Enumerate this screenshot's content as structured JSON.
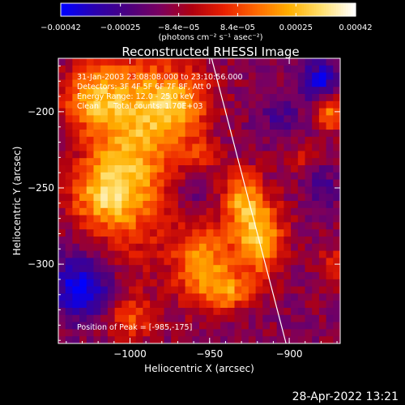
{
  "chart_data": {
    "type": "heatmap",
    "title": "Reconstructed RHESSI Image",
    "xlabel": "Heliocentric X (arcsec)",
    "ylabel": "Heliocentric Y (arcsec)",
    "xlim": [
      -1045,
      -868
    ],
    "ylim": [
      -352,
      -165
    ],
    "x_ticks": [
      -1000,
      -950,
      -900
    ],
    "x_tick_labels": [
      "−1000",
      "−950",
      "−900"
    ],
    "y_ticks": [
      -200,
      -250,
      -300
    ],
    "y_tick_labels": [
      "−200",
      "−250",
      "−300"
    ],
    "colorbar": {
      "range": [
        -0.00042,
        0.00042
      ],
      "tick_values": [
        -0.00042,
        -0.00025,
        -8.4e-05,
        8.4e-05,
        0.00025,
        0.00042
      ],
      "tick_labels": [
        "−0.00042",
        "−0.00025",
        "−8.4e−05",
        "8.4e−05",
        "0.00025",
        "0.00042"
      ],
      "unit_label": "(photons cm⁻² s⁻¹ asec⁻²)",
      "colormap": [
        "#0000ff",
        "#2a00b0",
        "#4a0080",
        "#7a0060",
        "#b00010",
        "#e82000",
        "#ff6a00",
        "#ffb000",
        "#ffe070",
        "#ffffff"
      ]
    },
    "annotations": [
      "31-Jan-2003 23:08:08.000 to 23:10:56.000",
      "Detectors: 3F 4F 5F 6F 7F 8F, Att 0",
      "Energy Range: 12.0 - 25.0 keV",
      "Clean      Total counts: 1.70E+03",
      "Position of Peak = [-985,-175]"
    ],
    "peak_position": [
      -985,
      -175
    ],
    "intensity_blobs": [
      {
        "x": -1000,
        "y": -225,
        "sx": 20,
        "sy": 45,
        "amp": 0.00036
      },
      {
        "x": -970,
        "y": -195,
        "sx": 15,
        "sy": 16,
        "amp": 0.0003
      },
      {
        "x": -1025,
        "y": -190,
        "sx": 13,
        "sy": 13,
        "amp": 0.00026
      },
      {
        "x": -1018,
        "y": -255,
        "sx": 14,
        "sy": 14,
        "amp": 0.00024
      },
      {
        "x": -955,
        "y": -300,
        "sx": 12,
        "sy": 18,
        "amp": 0.00034
      },
      {
        "x": -920,
        "y": -282,
        "sx": 11,
        "sy": 18,
        "amp": 0.0004
      },
      {
        "x": -930,
        "y": -255,
        "sx": 9,
        "sy": 12,
        "amp": 0.00026
      },
      {
        "x": -938,
        "y": -318,
        "sx": 10,
        "sy": 9,
        "amp": 0.00024
      },
      {
        "x": -1000,
        "y": -335,
        "sx": 11,
        "sy": 10,
        "amp": 0.0002
      },
      {
        "x": -875,
        "y": -200,
        "sx": 6,
        "sy": 9,
        "amp": 0.0003
      },
      {
        "x": -893,
        "y": -230,
        "sx": 6,
        "sy": 6,
        "amp": 0.00014
      },
      {
        "x": -870,
        "y": -300,
        "sx": 8,
        "sy": 8,
        "amp": 0.00018
      },
      {
        "x": -955,
        "y": -228,
        "sx": 9,
        "sy": 7,
        "amp": 0.00014
      },
      {
        "x": -1030,
        "y": -315,
        "sx": 13,
        "sy": 15,
        "amp": -0.0003
      },
      {
        "x": -880,
        "y": -180,
        "sx": 9,
        "sy": 9,
        "amp": -0.00026
      },
      {
        "x": -905,
        "y": -205,
        "sx": 9,
        "sy": 11,
        "amp": -0.00012
      },
      {
        "x": -880,
        "y": -250,
        "sx": 8,
        "sy": 9,
        "amp": -0.00012
      },
      {
        "x": -960,
        "y": -255,
        "sx": 9,
        "sy": 9,
        "amp": -0.0001
      }
    ],
    "limb_line": {
      "x": [
        -950,
        -902
      ],
      "y": [
        -160,
        -352
      ]
    }
  },
  "footer": {
    "date": "28-Apr-2022 13:21"
  }
}
